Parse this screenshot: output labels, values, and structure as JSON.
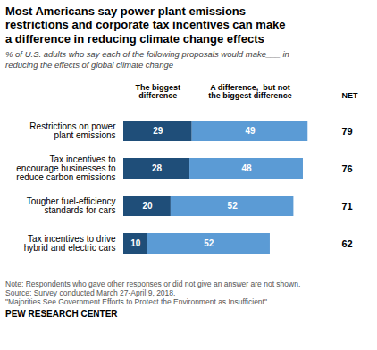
{
  "chart_data": {
    "type": "bar",
    "orientation": "horizontal",
    "stacked": true,
    "title": "Most Americans say power plant emissions\nrestrictions and corporate tax incentives can make\na difference in reducing climate change effects",
    "subtitle": "% of U.S. adults who say each of the following proposals would make___ in\nreducing the effects of global climate change",
    "categories": [
      "Restrictions on power\nplant emissions",
      "Tax incentives to\nencourage businesses to\nreduce carbon emissions",
      "Tougher fuel-efficiency\nstandards for cars",
      "Tax incentives to drive\nhybrid and electric cars"
    ],
    "series": [
      {
        "name": "The biggest\ndifference",
        "color": "#1f4e79",
        "values": [
          29,
          28,
          20,
          10
        ]
      },
      {
        "name": "A difference,  but not\nthe biggest difference",
        "color": "#5b9bd5",
        "values": [
          49,
          48,
          52,
          52
        ]
      }
    ],
    "net": {
      "name": "NET",
      "values": [
        79,
        76,
        71,
        62
      ]
    },
    "xlim": [
      0,
      90
    ],
    "tick_labels": "y",
    "data_labels": true,
    "note": "Note: Respondents who gave other responses or did not give an answer are not shown.\nSource: Survey conducted March 27-April 9, 2018.\n\"Majorities See Government Efforts to Protect the Environment as Insufficient\"",
    "footer": "PEW RESEARCH CENTER"
  }
}
